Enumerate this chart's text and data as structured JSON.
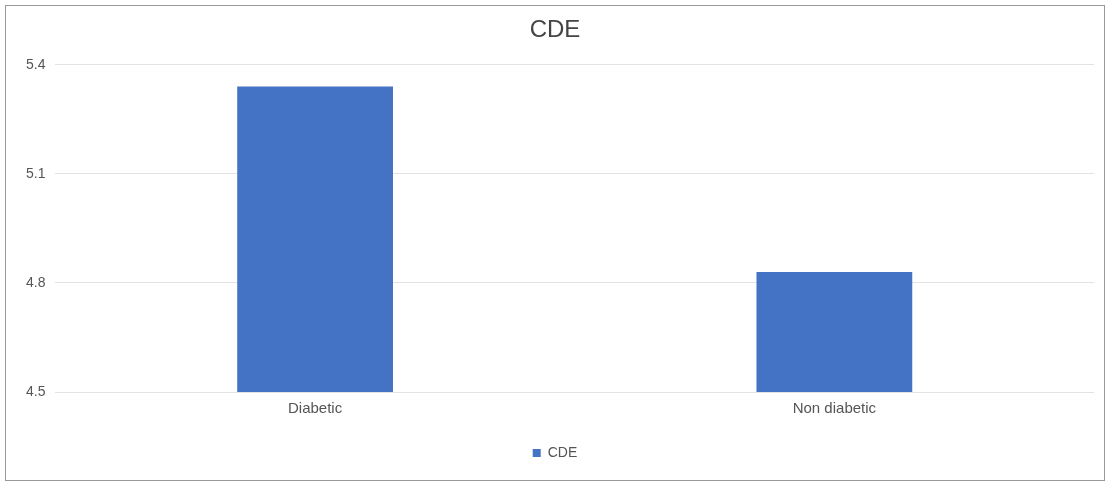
{
  "chart_data": {
    "type": "bar",
    "title": "CDE",
    "categories": [
      "Diabetic",
      "Non diabetic"
    ],
    "series": [
      {
        "name": "CDE",
        "color": "#4472c4",
        "values": [
          5.34,
          4.83
        ]
      }
    ],
    "ylim": [
      4.5,
      5.4
    ],
    "yticks": [
      4.5,
      4.8,
      5.1,
      5.4
    ],
    "grid": "y",
    "legend": "bottom"
  }
}
